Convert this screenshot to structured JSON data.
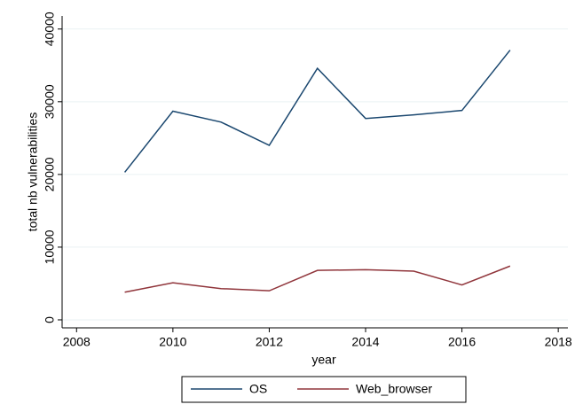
{
  "chart_data": {
    "type": "line",
    "x": [
      2009,
      2010,
      2011,
      2012,
      2013,
      2014,
      2015,
      2016,
      2017
    ],
    "series": [
      {
        "name": "OS",
        "color": "#1a476f",
        "values": [
          20300,
          28700,
          27200,
          24000,
          34600,
          27700,
          28200,
          28800,
          37100
        ]
      },
      {
        "name": "Web_browser",
        "color": "#90353b",
        "values": [
          3800,
          5100,
          4300,
          4000,
          6800,
          6900,
          6700,
          4800,
          7400
        ]
      }
    ],
    "xlabel": "year",
    "ylabel": "total nb vulnerabilities",
    "xlim": [
      2007.7,
      2018.2
    ],
    "xticks": [
      2008,
      2010,
      2012,
      2014,
      2016,
      2018
    ],
    "ylim": [
      -1100,
      41800
    ],
    "yticks": [
      0,
      10000,
      20000,
      30000,
      40000
    ],
    "grid": true,
    "legend": "bottom"
  }
}
